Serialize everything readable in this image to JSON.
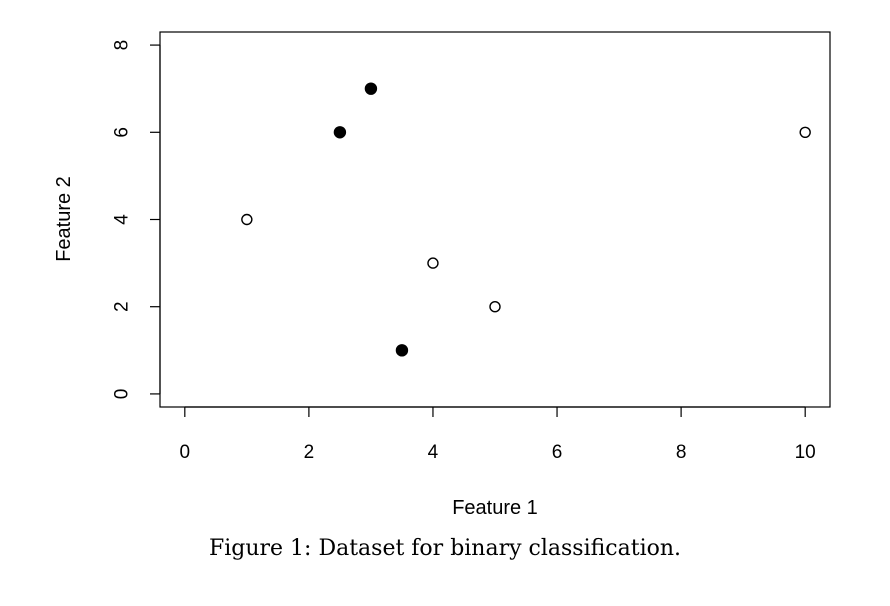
{
  "caption": "Figure 1: Dataset for binary classification.",
  "chart_data": {
    "type": "scatter",
    "title": "",
    "xlabel": "Feature 1",
    "ylabel": "Feature 2",
    "xlim": [
      -0.4,
      10.4
    ],
    "ylim": [
      -0.3,
      8.3
    ],
    "x_ticks": [
      0,
      2,
      4,
      6,
      8,
      10
    ],
    "y_ticks": [
      0,
      2,
      4,
      6,
      8
    ],
    "grid": false,
    "legend": "none",
    "series": [
      {
        "marker": "filled-circle",
        "color": "#000000",
        "points": [
          {
            "x": 2.5,
            "y": 6
          },
          {
            "x": 3,
            "y": 7
          },
          {
            "x": 3.5,
            "y": 1
          }
        ]
      },
      {
        "marker": "open-circle",
        "color": "#000000",
        "points": [
          {
            "x": 1,
            "y": 4
          },
          {
            "x": 4,
            "y": 3
          },
          {
            "x": 5,
            "y": 2
          },
          {
            "x": 10,
            "y": 6
          }
        ]
      }
    ]
  }
}
